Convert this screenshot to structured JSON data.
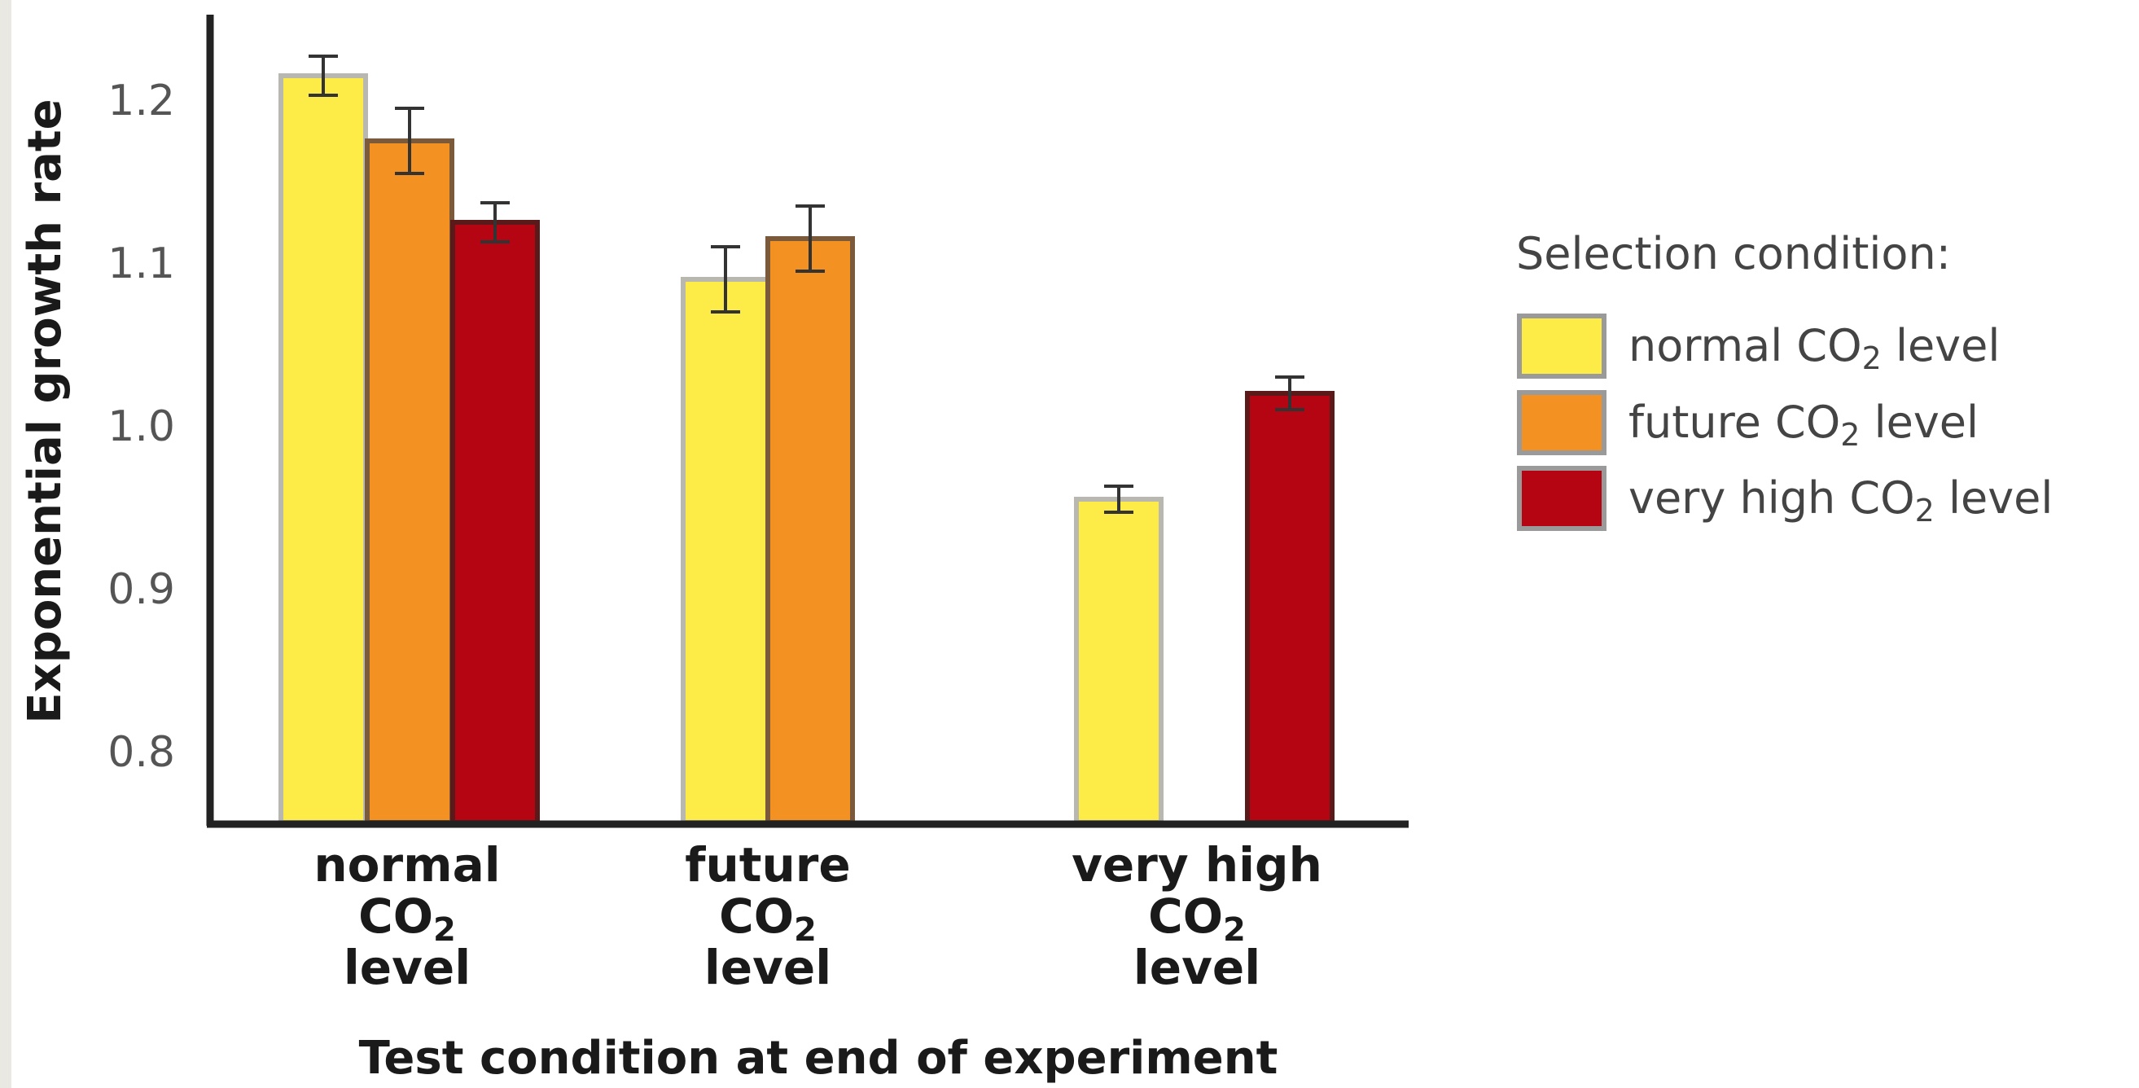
{
  "chart_data": {
    "type": "bar",
    "title": "",
    "xlabel": "Test condition at end of experiment",
    "ylabel": "Exponential growth rate",
    "ylim": [
      0.75,
      1.25
    ],
    "yticks": [
      {
        "value": 0.8,
        "label": "0.8"
      },
      {
        "value": 0.9,
        "label": "0.9"
      },
      {
        "value": 1.0,
        "label": "1.0"
      },
      {
        "value": 1.1,
        "label": "1.1"
      },
      {
        "value": 1.2,
        "label": "1.2"
      }
    ],
    "categories": [
      {
        "line1": "normal",
        "line2": "CO",
        "sub": "2",
        "line3": "level"
      },
      {
        "line1": "future",
        "line2": "CO",
        "sub": "2",
        "line3": "level"
      },
      {
        "line1": "very high",
        "line2": "CO",
        "sub": "2",
        "line3": "level"
      }
    ],
    "legend": {
      "title": "Selection condition:",
      "placement": "right"
    },
    "series": [
      {
        "name": "normal CO",
        "name_sub": "2",
        "name_suffix": " level",
        "color": "#fdec47",
        "values": [
          1.215,
          1.09,
          0.955
        ],
        "errors": [
          0.012,
          0.02,
          0.008
        ]
      },
      {
        "name": "future CO",
        "name_sub": "2",
        "name_suffix": " level",
        "color": "#f39223",
        "values": [
          1.175,
          1.115,
          null
        ],
        "errors": [
          0.02,
          0.02,
          null
        ]
      },
      {
        "name": "very high CO",
        "name_sub": "2",
        "name_suffix": " level",
        "color": "#b50513",
        "values": [
          1.125,
          null,
          1.02
        ],
        "errors": [
          0.012,
          null,
          0.01
        ]
      }
    ],
    "grid": false
  }
}
